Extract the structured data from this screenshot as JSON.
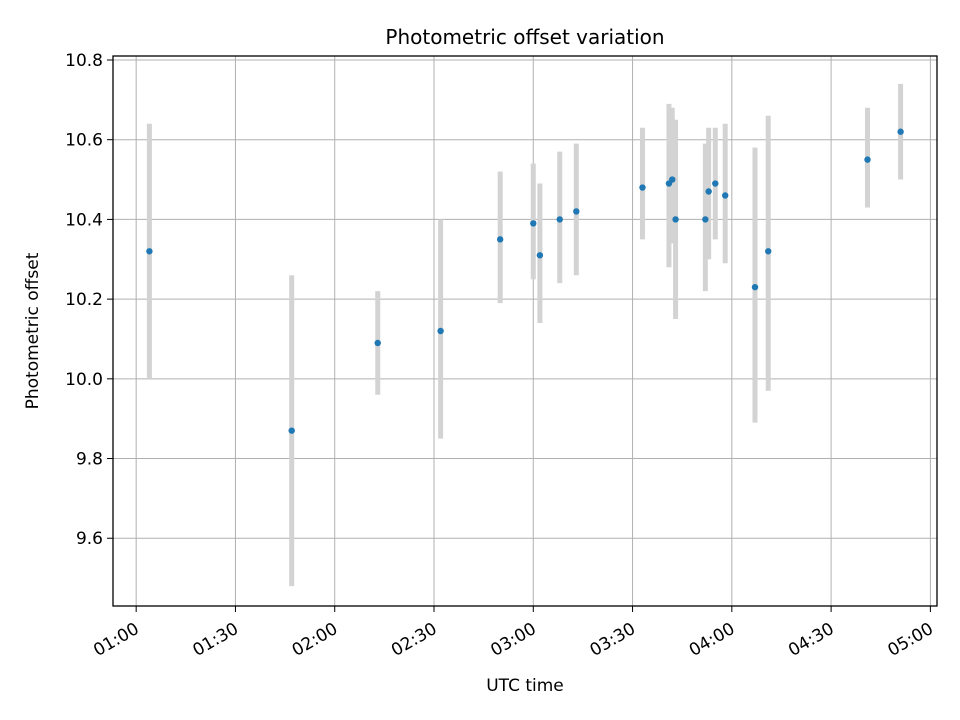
{
  "chart_data": {
    "type": "scatter",
    "title": "Photometric offset variation",
    "xlabel": "UTC time",
    "ylabel": "Photometric offset",
    "grid": true,
    "xlim": [
      "00:53",
      "05:02"
    ],
    "ylim": [
      9.43,
      10.81
    ],
    "x_ticks": [
      "01:00",
      "01:30",
      "02:00",
      "02:30",
      "03:00",
      "03:30",
      "04:00",
      "04:30",
      "05:00"
    ],
    "y_ticks": [
      9.6,
      9.8,
      10.0,
      10.2,
      10.4,
      10.6,
      10.8
    ],
    "y_tick_labels": [
      "9.6",
      "9.8",
      "10.0",
      "10.2",
      "10.4",
      "10.6",
      "10.8"
    ],
    "marker_color": "#1f77b4",
    "errorbar_color": "#d3d3d3",
    "points": [
      {
        "t": "01:04",
        "y": 10.32,
        "lo": 10.0,
        "hi": 10.64
      },
      {
        "t": "01:47",
        "y": 9.87,
        "lo": 9.48,
        "hi": 10.26
      },
      {
        "t": "02:13",
        "y": 10.09,
        "lo": 9.96,
        "hi": 10.22
      },
      {
        "t": "02:32",
        "y": 10.12,
        "lo": 9.85,
        "hi": 10.4
      },
      {
        "t": "02:50",
        "y": 10.35,
        "lo": 10.19,
        "hi": 10.52
      },
      {
        "t": "03:00",
        "y": 10.39,
        "lo": 10.25,
        "hi": 10.54
      },
      {
        "t": "03:02",
        "y": 10.31,
        "lo": 10.14,
        "hi": 10.49
      },
      {
        "t": "03:08",
        "y": 10.4,
        "lo": 10.24,
        "hi": 10.57
      },
      {
        "t": "03:13",
        "y": 10.42,
        "lo": 10.26,
        "hi": 10.59
      },
      {
        "t": "03:33",
        "y": 10.48,
        "lo": 10.35,
        "hi": 10.63
      },
      {
        "t": "03:41",
        "y": 10.49,
        "lo": 10.28,
        "hi": 10.69
      },
      {
        "t": "03:42",
        "y": 10.5,
        "lo": 10.34,
        "hi": 10.68
      },
      {
        "t": "03:43",
        "y": 10.4,
        "lo": 10.15,
        "hi": 10.65
      },
      {
        "t": "03:52",
        "y": 10.4,
        "lo": 10.22,
        "hi": 10.59
      },
      {
        "t": "03:53",
        "y": 10.47,
        "lo": 10.3,
        "hi": 10.63
      },
      {
        "t": "03:55",
        "y": 10.49,
        "lo": 10.35,
        "hi": 10.63
      },
      {
        "t": "03:58",
        "y": 10.46,
        "lo": 10.29,
        "hi": 10.64
      },
      {
        "t": "04:07",
        "y": 10.23,
        "lo": 9.89,
        "hi": 10.58
      },
      {
        "t": "04:11",
        "y": 10.32,
        "lo": 9.97,
        "hi": 10.66
      },
      {
        "t": "04:41",
        "y": 10.55,
        "lo": 10.43,
        "hi": 10.68
      },
      {
        "t": "04:51",
        "y": 10.62,
        "lo": 10.5,
        "hi": 10.74
      }
    ]
  }
}
